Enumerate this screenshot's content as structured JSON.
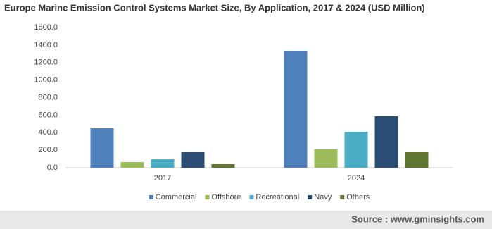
{
  "chart_data": {
    "type": "bar",
    "title": "Europe Marine Emission Control Systems Market Size, By Application, 2017 & 2024 (USD Million)",
    "categories": [
      "2017",
      "2024"
    ],
    "series": [
      {
        "name": "Commercial",
        "color": "#4f81bd",
        "values": [
          450,
          1335
        ]
      },
      {
        "name": "Offshore",
        "color": "#9bbb59",
        "values": [
          64,
          209
        ]
      },
      {
        "name": "Recreational",
        "color": "#4bacc6",
        "values": [
          96,
          410
        ]
      },
      {
        "name": "Navy",
        "color": "#2c4d75",
        "values": [
          177,
          587
        ]
      },
      {
        "name": "Others",
        "color": "#5f7530",
        "values": [
          40,
          177
        ]
      }
    ],
    "ylim": [
      0,
      1600
    ],
    "yticks": [
      {
        "value": 0,
        "label": "0.0"
      },
      {
        "value": 200,
        "label": "200.0"
      },
      {
        "value": 400,
        "label": "400.0"
      },
      {
        "value": 600,
        "label": "600.0"
      },
      {
        "value": 800,
        "label": "800.0"
      },
      {
        "value": 1000,
        "label": "1000.0"
      },
      {
        "value": 1200,
        "label": "1200.0"
      },
      {
        "value": 1400,
        "label": "1400.0"
      },
      {
        "value": 1600,
        "label": "1600.0"
      }
    ],
    "grid": false,
    "legend": "bottom",
    "source": "Source : www.gminsights.com"
  }
}
